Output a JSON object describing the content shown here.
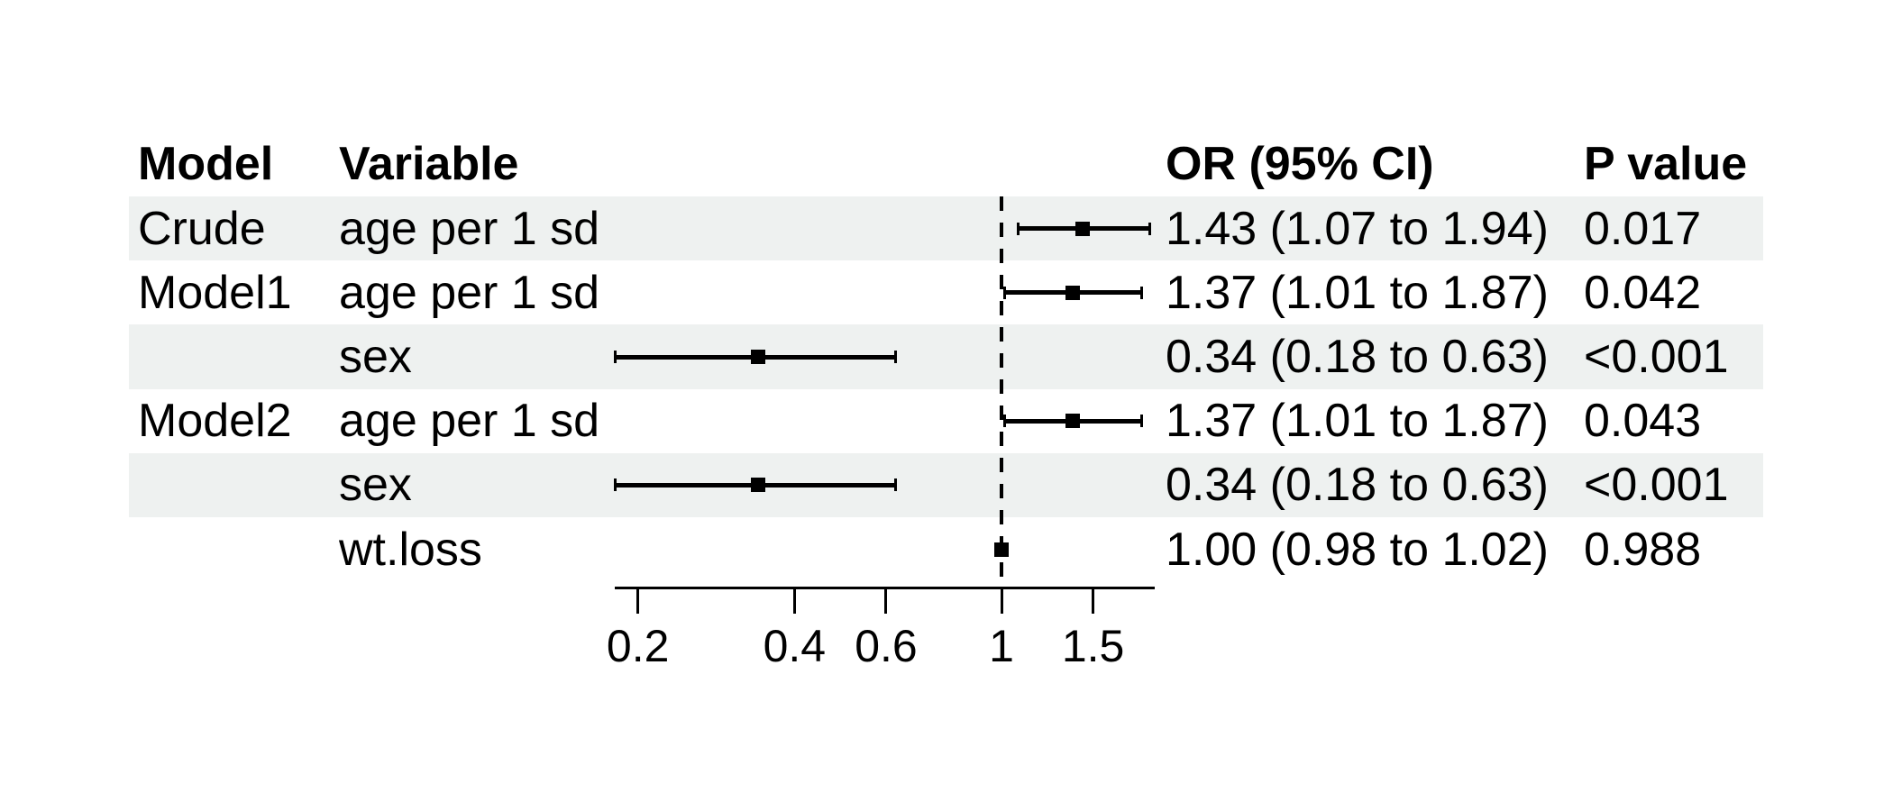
{
  "table": {
    "headers": [
      "Model",
      "Variable",
      "OR (95% CI)",
      "P value"
    ]
  },
  "chart_data": {
    "type": "forest",
    "x_scale": "log10",
    "x_ticks": [
      0.2,
      0.4,
      0.6,
      1,
      1.5
    ],
    "x_tick_labels": [
      "0.2",
      "0.4",
      "0.6",
      "1",
      "1.5"
    ],
    "x_range": [
      0.18,
      1.97
    ],
    "ref_line": 1,
    "columns": [
      "Model",
      "Variable",
      "OR (95% CI)",
      "P value"
    ],
    "rows": [
      {
        "model": "Crude",
        "variable": "age per 1 sd",
        "est": 1.43,
        "lo": 1.07,
        "hi": 1.94,
        "or_ci": "1.43 (1.07 to 1.94)",
        "p": "0.017",
        "shaded": true
      },
      {
        "model": "Model1",
        "variable": "age per 1 sd",
        "est": 1.37,
        "lo": 1.01,
        "hi": 1.87,
        "or_ci": "1.37 (1.01 to 1.87)",
        "p": "0.042",
        "shaded": false
      },
      {
        "model": "",
        "variable": "sex",
        "est": 0.34,
        "lo": 0.18,
        "hi": 0.63,
        "or_ci": "0.34 (0.18 to 0.63)",
        "p": "<0.001",
        "shaded": true
      },
      {
        "model": "Model2",
        "variable": "age per 1 sd",
        "est": 1.37,
        "lo": 1.01,
        "hi": 1.87,
        "or_ci": "1.37 (1.01 to 1.87)",
        "p": "0.043",
        "shaded": false
      },
      {
        "model": "",
        "variable": "sex",
        "est": 0.34,
        "lo": 0.18,
        "hi": 0.63,
        "or_ci": "0.34 (0.18 to 0.63)",
        "p": "<0.001",
        "shaded": true
      },
      {
        "model": "",
        "variable": "wt.loss",
        "est": 1.0,
        "lo": 0.98,
        "hi": 1.02,
        "or_ci": "1.00 (0.98 to 1.02)",
        "p": "0.988",
        "shaded": false
      }
    ]
  },
  "colors": {
    "band": "#eef1f0",
    "ink": "#000000",
    "background": "#ffffff"
  }
}
